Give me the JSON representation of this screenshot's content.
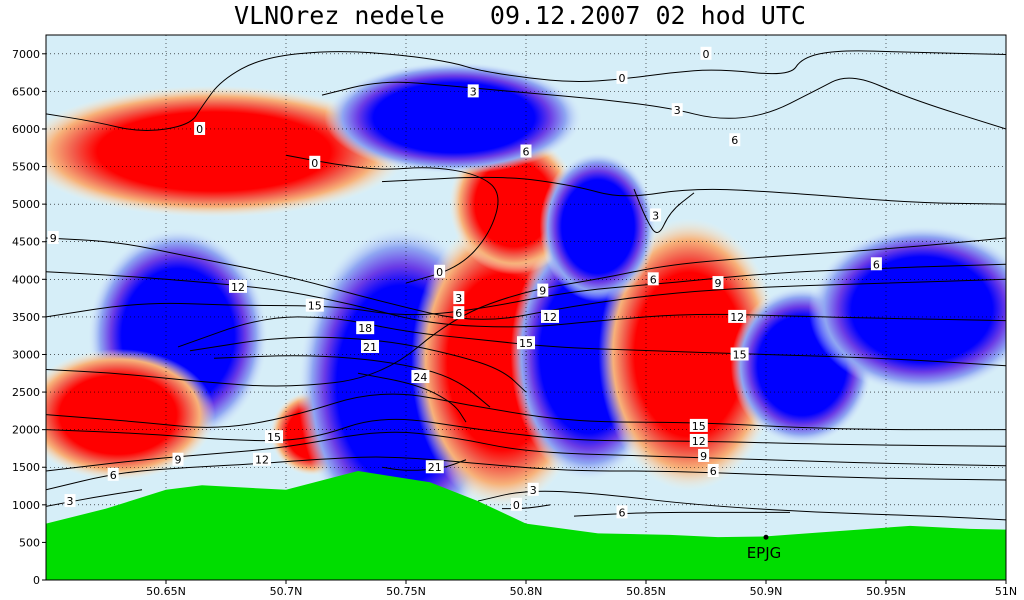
{
  "chart_data": {
    "type": "heatmap",
    "title": "VLNOrez nedele   09.12.2007 02 hod UTC",
    "xlabel": "",
    "ylabel": "",
    "xlim": [
      50.6,
      51.0
    ],
    "ylim": [
      0,
      7250
    ],
    "x_ticks": [
      "50.65N",
      "50.7N",
      "50.75N",
      "50.8N",
      "50.85N",
      "50.9N",
      "50.95N",
      "51N"
    ],
    "x_tick_values": [
      50.65,
      50.7,
      50.75,
      50.8,
      50.85,
      50.9,
      50.95,
      51.0
    ],
    "y_ticks": [
      "0",
      "500",
      "1000",
      "1500",
      "2000",
      "2500",
      "3000",
      "3500",
      "4000",
      "4500",
      "5000",
      "5500",
      "6000",
      "6500",
      "7000"
    ],
    "y_tick_values": [
      0,
      500,
      1000,
      1500,
      2000,
      2500,
      3000,
      3500,
      4000,
      4500,
      5000,
      5500,
      6000,
      6500,
      7000
    ],
    "grid": true,
    "colors": {
      "strong_negative": "#0000ff",
      "strong_positive": "#ff0000",
      "terrain": "#00dd00",
      "contour": "#000000"
    },
    "shaded_cells": [
      {
        "sign": "negative",
        "x": 50.655,
        "y": 3250,
        "rx": 0.028,
        "ry": 1150
      },
      {
        "sign": "positive",
        "x": 50.711,
        "y": 1950,
        "rx": 0.013,
        "ry": 450
      },
      {
        "sign": "negative",
        "x": 50.748,
        "y": 2600,
        "rx": 0.032,
        "ry": 1700
      },
      {
        "sign": "positive",
        "x": 50.79,
        "y": 2900,
        "rx": 0.028,
        "ry": 1550
      },
      {
        "sign": "negative",
        "x": 50.826,
        "y": 3000,
        "rx": 0.024,
        "ry": 1350
      },
      {
        "sign": "positive",
        "x": 50.868,
        "y": 3000,
        "rx": 0.028,
        "ry": 1450
      },
      {
        "sign": "negative",
        "x": 50.915,
        "y": 2850,
        "rx": 0.022,
        "ry": 850
      },
      {
        "sign": "positive",
        "x": 50.795,
        "y": 5000,
        "rx": 0.02,
        "ry": 750
      },
      {
        "sign": "positive",
        "x": 50.67,
        "y": 5700,
        "rx": 0.06,
        "ry": 700
      },
      {
        "sign": "negative",
        "x": 50.77,
        "y": 6150,
        "rx": 0.04,
        "ry": 600
      },
      {
        "sign": "negative",
        "x": 50.83,
        "y": 4700,
        "rx": 0.018,
        "ry": 800
      },
      {
        "sign": "positive",
        "x": 50.63,
        "y": 2200,
        "rx": 0.03,
        "ry": 700
      },
      {
        "sign": "negative",
        "x": 50.965,
        "y": 3600,
        "rx": 0.035,
        "ry": 900
      }
    ],
    "terrain_profile": [
      [
        50.6,
        750
      ],
      [
        50.625,
        950
      ],
      [
        50.65,
        1200
      ],
      [
        50.665,
        1260
      ],
      [
        50.7,
        1200
      ],
      [
        50.73,
        1450
      ],
      [
        50.76,
        1300
      ],
      [
        50.78,
        1050
      ],
      [
        50.8,
        750
      ],
      [
        50.83,
        620
      ],
      [
        50.86,
        600
      ],
      [
        50.88,
        570
      ],
      [
        50.9,
        580
      ],
      [
        50.93,
        650
      ],
      [
        50.96,
        720
      ],
      [
        50.985,
        680
      ],
      [
        51.0,
        670
      ]
    ],
    "contours": [
      {
        "level": "0",
        "points": [
          [
            50.6,
            6200
          ],
          [
            50.62,
            6100
          ],
          [
            50.64,
            5950
          ],
          [
            50.66,
            6050
          ],
          [
            50.665,
            6300
          ],
          [
            50.673,
            6650
          ],
          [
            50.69,
            6950
          ],
          [
            50.72,
            7050
          ],
          [
            50.75,
            6980
          ],
          [
            50.77,
            6880
          ],
          [
            50.78,
            6780
          ],
          [
            50.8,
            6680
          ],
          [
            50.82,
            6620
          ],
          [
            50.84,
            6660
          ],
          [
            50.86,
            6750
          ],
          [
            50.88,
            6800
          ],
          [
            50.91,
            6700
          ],
          [
            50.915,
            6950
          ],
          [
            50.93,
            7050
          ],
          [
            50.96,
            7020
          ],
          [
            51.0,
            6990
          ]
        ]
      },
      {
        "level": "0",
        "points": [
          [
            50.7,
            5650
          ],
          [
            50.72,
            5530
          ],
          [
            50.74,
            5450
          ],
          [
            50.76,
            5500
          ],
          [
            50.78,
            5400
          ],
          [
            50.79,
            5150
          ],
          [
            50.785,
            4600
          ],
          [
            50.772,
            4150
          ],
          [
            50.75,
            3950
          ]
        ]
      },
      {
        "level": "3",
        "points": [
          [
            50.715,
            6450
          ],
          [
            50.74,
            6650
          ],
          [
            50.77,
            6570
          ],
          [
            50.8,
            6480
          ],
          [
            50.83,
            6400
          ],
          [
            50.86,
            6280
          ],
          [
            50.88,
            6120
          ],
          [
            50.9,
            6180
          ],
          [
            50.92,
            6500
          ],
          [
            50.935,
            6750
          ],
          [
            50.96,
            6400
          ],
          [
            51.0,
            6000
          ]
        ]
      },
      {
        "level": "6",
        "points": [
          [
            50.74,
            5300
          ],
          [
            50.79,
            5380
          ],
          [
            50.82,
            5250
          ],
          [
            50.84,
            5070
          ],
          [
            50.87,
            5220
          ],
          [
            50.91,
            5150
          ],
          [
            50.96,
            5020
          ],
          [
            51.0,
            5000
          ]
        ]
      },
      {
        "level": "3",
        "points": [
          [
            50.6,
            980
          ],
          [
            50.62,
            1100
          ],
          [
            50.64,
            1200
          ]
        ]
      },
      {
        "level": "6",
        "points": [
          [
            50.6,
            1200
          ],
          [
            50.63,
            1430
          ],
          [
            50.66,
            1500
          ],
          [
            50.69,
            1550
          ],
          [
            50.71,
            1600
          ],
          [
            50.74,
            1650
          ],
          [
            50.77,
            1580
          ],
          [
            50.79,
            1520
          ],
          [
            50.82,
            1450
          ],
          [
            50.86,
            1450
          ],
          [
            50.9,
            1400
          ],
          [
            50.95,
            1350
          ],
          [
            51.0,
            1330
          ]
        ]
      },
      {
        "level": "9",
        "points": [
          [
            50.6,
            1450
          ],
          [
            50.64,
            1600
          ],
          [
            50.67,
            1680
          ],
          [
            50.7,
            1760
          ],
          [
            50.74,
            2000
          ],
          [
            50.77,
            1900
          ],
          [
            50.8,
            1700
          ],
          [
            50.85,
            1650
          ],
          [
            50.9,
            1600
          ],
          [
            50.95,
            1550
          ],
          [
            51.0,
            1520
          ]
        ]
      },
      {
        "level": "12",
        "points": [
          [
            50.6,
            2000
          ],
          [
            50.64,
            1950
          ],
          [
            50.68,
            1850
          ],
          [
            50.71,
            1860
          ],
          [
            50.74,
            2200
          ],
          [
            50.78,
            2000
          ],
          [
            50.82,
            1850
          ],
          [
            50.87,
            1850
          ],
          [
            50.93,
            1800
          ],
          [
            51.0,
            1780
          ]
        ]
      },
      {
        "level": "15",
        "points": [
          [
            50.6,
            2200
          ],
          [
            50.64,
            2100
          ],
          [
            50.67,
            2000
          ],
          [
            50.7,
            2150
          ],
          [
            50.74,
            2550
          ],
          [
            50.78,
            2300
          ],
          [
            50.82,
            2100
          ],
          [
            50.87,
            2100
          ],
          [
            50.93,
            2000
          ],
          [
            51.0,
            2000
          ]
        ]
      },
      {
        "level": "3",
        "points": [
          [
            50.6,
            2800
          ],
          [
            50.63,
            2750
          ],
          [
            50.66,
            2650
          ],
          [
            50.7,
            2550
          ],
          [
            50.74,
            2700
          ],
          [
            50.77,
            3500
          ],
          [
            50.8,
            3850
          ],
          [
            50.83,
            4000
          ],
          [
            50.86,
            4200
          ],
          [
            50.9,
            4300
          ],
          [
            50.95,
            4400
          ],
          [
            51.0,
            4550
          ]
        ]
      },
      {
        "level": "6",
        "points": [
          [
            50.6,
            3500
          ],
          [
            50.64,
            3700
          ],
          [
            50.68,
            3650
          ],
          [
            50.72,
            3650
          ],
          [
            50.75,
            3500
          ],
          [
            50.78,
            3600
          ],
          [
            50.82,
            3850
          ],
          [
            50.86,
            3950
          ],
          [
            50.9,
            4080
          ],
          [
            50.95,
            4150
          ],
          [
            51.0,
            4200
          ]
        ]
      },
      {
        "level": "9",
        "points": [
          [
            50.6,
            4550
          ],
          [
            50.63,
            4500
          ],
          [
            50.66,
            4300
          ],
          [
            50.7,
            4050
          ],
          [
            50.74,
            3700
          ],
          [
            50.78,
            3400
          ],
          [
            50.82,
            3650
          ],
          [
            50.86,
            3820
          ],
          [
            50.9,
            3900
          ],
          [
            50.95,
            3950
          ],
          [
            51.0,
            4000
          ]
        ]
      },
      {
        "level": "12",
        "points": [
          [
            50.6,
            4100
          ],
          [
            50.63,
            4050
          ],
          [
            50.67,
            3950
          ],
          [
            50.7,
            3850
          ],
          [
            50.73,
            3650
          ],
          [
            50.76,
            3400
          ],
          [
            50.8,
            3350
          ],
          [
            50.83,
            3450
          ],
          [
            50.87,
            3550
          ],
          [
            50.92,
            3500
          ],
          [
            51.0,
            3450
          ]
        ]
      },
      {
        "level": "15",
        "points": [
          [
            50.655,
            3100
          ],
          [
            50.69,
            3500
          ],
          [
            50.72,
            3500
          ],
          [
            50.75,
            3300
          ],
          [
            50.78,
            3200
          ],
          [
            50.81,
            3100
          ],
          [
            50.85,
            3050
          ],
          [
            50.9,
            3000
          ],
          [
            50.95,
            2950
          ],
          [
            51.0,
            2850
          ]
        ]
      },
      {
        "level": "18",
        "points": [
          [
            50.66,
            3050
          ],
          [
            50.7,
            3250
          ],
          [
            50.74,
            3200
          ],
          [
            50.77,
            3000
          ],
          [
            50.79,
            2800
          ],
          [
            50.8,
            2500
          ]
        ]
      },
      {
        "level": "21",
        "points": [
          [
            50.67,
            2950
          ],
          [
            50.71,
            3000
          ],
          [
            50.745,
            2900
          ],
          [
            50.77,
            2700
          ],
          [
            50.785,
            2300
          ]
        ]
      },
      {
        "level": "24",
        "points": [
          [
            50.73,
            2750
          ],
          [
            50.755,
            2600
          ],
          [
            50.77,
            2350
          ],
          [
            50.775,
            2100
          ]
        ]
      },
      {
        "level": "21",
        "points": [
          [
            50.74,
            1500
          ],
          [
            50.75,
            1450
          ],
          [
            50.765,
            1480
          ],
          [
            50.775,
            1600
          ]
        ]
      },
      {
        "level": "3",
        "points": [
          [
            50.78,
            1050
          ],
          [
            50.8,
            1200
          ],
          [
            50.83,
            1150
          ],
          [
            50.87,
            1000
          ],
          [
            50.92,
            900
          ],
          [
            50.97,
            850
          ],
          [
            51.0,
            800
          ]
        ]
      },
      {
        "level": "0",
        "points": [
          [
            50.79,
            950
          ],
          [
            50.8,
            950
          ],
          [
            50.81,
            1000
          ]
        ]
      },
      {
        "level": "6",
        "points": [
          [
            50.82,
            850
          ],
          [
            50.85,
            900
          ],
          [
            50.88,
            900
          ],
          [
            50.91,
            900
          ]
        ]
      },
      {
        "level": "3",
        "points": [
          [
            50.845,
            5200
          ],
          [
            50.85,
            4800
          ],
          [
            50.855,
            4550
          ],
          [
            50.86,
            4900
          ],
          [
            50.87,
            5150
          ]
        ]
      }
    ],
    "contour_labels": [
      {
        "text": "0",
        "x": 50.664,
        "y": 6000
      },
      {
        "text": "0",
        "x": 50.875,
        "y": 7000
      },
      {
        "text": "0",
        "x": 50.84,
        "y": 6680
      },
      {
        "text": "0",
        "x": 50.712,
        "y": 5550
      },
      {
        "text": "0",
        "x": 50.764,
        "y": 4100
      },
      {
        "text": "0",
        "x": 50.796,
        "y": 1000
      },
      {
        "text": "3",
        "x": 50.778,
        "y": 6500
      },
      {
        "text": "3",
        "x": 50.863,
        "y": 6250
      },
      {
        "text": "3",
        "x": 50.854,
        "y": 4850
      },
      {
        "text": "3",
        "x": 50.772,
        "y": 3750
      },
      {
        "text": "3",
        "x": 50.61,
        "y": 1050
      },
      {
        "text": "3",
        "x": 50.803,
        "y": 1200
      },
      {
        "text": "6",
        "x": 50.8,
        "y": 5700
      },
      {
        "text": "6",
        "x": 50.887,
        "y": 5850
      },
      {
        "text": "6",
        "x": 50.946,
        "y": 4200
      },
      {
        "text": "6",
        "x": 50.853,
        "y": 4000
      },
      {
        "text": "6",
        "x": 50.772,
        "y": 3550
      },
      {
        "text": "6",
        "x": 50.628,
        "y": 1400
      },
      {
        "text": "6",
        "x": 50.878,
        "y": 1450
      },
      {
        "text": "6",
        "x": 50.84,
        "y": 900
      },
      {
        "text": "9",
        "x": 50.603,
        "y": 4550
      },
      {
        "text": "9",
        "x": 50.807,
        "y": 3850
      },
      {
        "text": "9",
        "x": 50.88,
        "y": 3950
      },
      {
        "text": "9",
        "x": 50.655,
        "y": 1600
      },
      {
        "text": "9",
        "x": 50.874,
        "y": 1650
      },
      {
        "text": "12",
        "x": 50.68,
        "y": 3900
      },
      {
        "text": "12",
        "x": 50.81,
        "y": 3500
      },
      {
        "text": "12",
        "x": 50.888,
        "y": 3500
      },
      {
        "text": "12",
        "x": 50.69,
        "y": 1600
      },
      {
        "text": "12",
        "x": 50.872,
        "y": 1850
      },
      {
        "text": "15",
        "x": 50.712,
        "y": 3650
      },
      {
        "text": "15",
        "x": 50.8,
        "y": 3150
      },
      {
        "text": "15",
        "x": 50.889,
        "y": 3000
      },
      {
        "text": "15",
        "x": 50.695,
        "y": 1900
      },
      {
        "text": "15",
        "x": 50.872,
        "y": 2050
      },
      {
        "text": "18",
        "x": 50.733,
        "y": 3350
      },
      {
        "text": "21",
        "x": 50.735,
        "y": 3100
      },
      {
        "text": "21",
        "x": 50.762,
        "y": 1500
      },
      {
        "text": "24",
        "x": 50.756,
        "y": 2700
      }
    ],
    "station": {
      "label": "EPJG",
      "x": 50.9,
      "y": 250
    }
  }
}
